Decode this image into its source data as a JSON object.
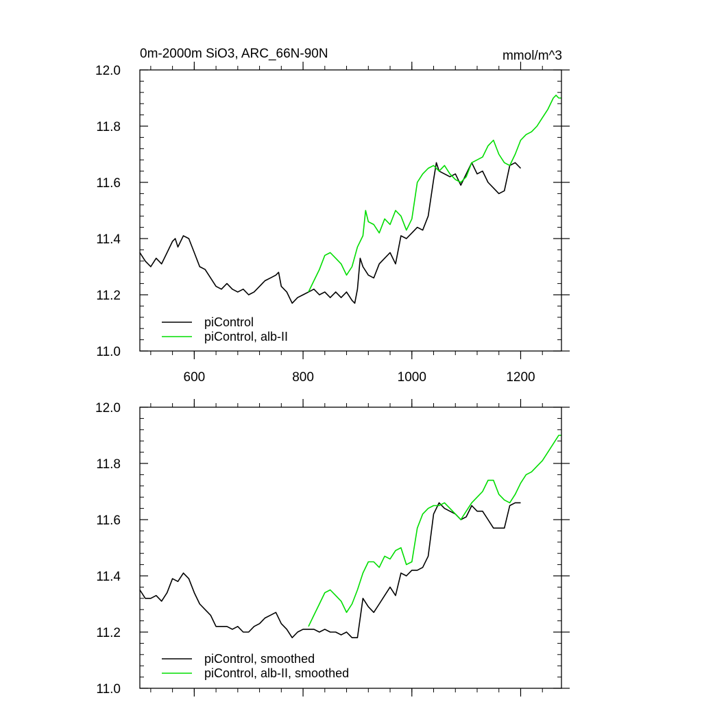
{
  "chart_data": [
    {
      "type": "line",
      "title": "0m-2000m SiO3, ARC_66N-90N",
      "units": "mmol/m^3",
      "xlim": [
        500,
        1275
      ],
      "ylim": [
        11.0,
        12.0
      ],
      "xticks": [
        600,
        800,
        1000,
        1200
      ],
      "yticks": [
        11.0,
        11.2,
        11.4,
        11.6,
        11.8,
        12.0
      ],
      "ytick_labels": [
        "11.0",
        "11.2",
        "11.4",
        "11.6",
        "11.8",
        "12.0"
      ],
      "legend_position": "bottom-left",
      "series": [
        {
          "name": "piControl",
          "color": "#000000",
          "x": [
            500,
            510,
            520,
            530,
            540,
            550,
            560,
            565,
            570,
            580,
            590,
            600,
            610,
            620,
            630,
            640,
            650,
            660,
            670,
            680,
            690,
            700,
            710,
            720,
            730,
            740,
            750,
            755,
            760,
            770,
            780,
            790,
            800,
            810,
            820,
            830,
            840,
            850,
            860,
            870,
            880,
            890,
            895,
            900,
            905,
            910,
            920,
            930,
            940,
            950,
            960,
            970,
            980,
            990,
            1000,
            1010,
            1020,
            1030,
            1040,
            1045,
            1050,
            1060,
            1070,
            1080,
            1090,
            1100,
            1110,
            1120,
            1130,
            1140,
            1150,
            1160,
            1170,
            1180,
            1190,
            1200
          ],
          "y": [
            11.35,
            11.32,
            11.3,
            11.33,
            11.31,
            11.35,
            11.39,
            11.4,
            11.37,
            11.41,
            11.4,
            11.35,
            11.3,
            11.29,
            11.26,
            11.23,
            11.22,
            11.24,
            11.22,
            11.21,
            11.22,
            11.2,
            11.21,
            11.23,
            11.25,
            11.26,
            11.27,
            11.28,
            11.23,
            11.21,
            11.17,
            11.19,
            11.2,
            11.21,
            11.22,
            11.2,
            11.21,
            11.19,
            11.21,
            11.19,
            11.21,
            11.18,
            11.17,
            11.22,
            11.33,
            11.3,
            11.27,
            11.26,
            11.31,
            11.33,
            11.35,
            11.31,
            11.41,
            11.4,
            11.42,
            11.44,
            11.43,
            11.48,
            11.61,
            11.67,
            11.64,
            11.63,
            11.62,
            11.63,
            11.59,
            11.63,
            11.67,
            11.63,
            11.64,
            11.6,
            11.58,
            11.56,
            11.57,
            11.66,
            11.67,
            11.65
          ]
        },
        {
          "name": "piControl, alb-II",
          "color": "#00dd00",
          "x": [
            810,
            820,
            830,
            840,
            850,
            860,
            870,
            880,
            890,
            900,
            910,
            915,
            920,
            930,
            940,
            950,
            960,
            970,
            980,
            990,
            1000,
            1010,
            1020,
            1030,
            1040,
            1050,
            1060,
            1070,
            1080,
            1090,
            1100,
            1110,
            1120,
            1130,
            1140,
            1150,
            1160,
            1170,
            1180,
            1190,
            1200,
            1210,
            1220,
            1230,
            1240,
            1250,
            1260,
            1265,
            1270,
            1275
          ],
          "y": [
            11.21,
            11.25,
            11.29,
            11.34,
            11.35,
            11.33,
            11.31,
            11.27,
            11.3,
            11.37,
            11.41,
            11.5,
            11.46,
            11.45,
            11.42,
            11.47,
            11.45,
            11.5,
            11.48,
            11.43,
            11.47,
            11.6,
            11.63,
            11.65,
            11.66,
            11.64,
            11.66,
            11.63,
            11.61,
            11.6,
            11.62,
            11.67,
            11.68,
            11.69,
            11.73,
            11.75,
            11.7,
            11.67,
            11.66,
            11.7,
            11.75,
            11.77,
            11.78,
            11.8,
            11.83,
            11.86,
            11.9,
            11.91,
            11.9,
            11.9
          ]
        }
      ]
    },
    {
      "type": "line",
      "xlim": [
        500,
        1275
      ],
      "ylim": [
        11.0,
        12.0
      ],
      "xticks": [
        600,
        800,
        1000,
        1200
      ],
      "yticks": [
        11.0,
        11.2,
        11.4,
        11.6,
        11.8,
        12.0
      ],
      "ytick_labels": [
        "11.0",
        "11.2",
        "11.4",
        "11.6",
        "11.8",
        "12.0"
      ],
      "legend_position": "bottom-left",
      "series": [
        {
          "name": "piControl, smoothed",
          "color": "#000000",
          "x": [
            500,
            510,
            520,
            530,
            540,
            550,
            560,
            570,
            580,
            590,
            600,
            610,
            620,
            630,
            640,
            650,
            660,
            670,
            680,
            690,
            700,
            710,
            720,
            730,
            740,
            750,
            760,
            770,
            780,
            790,
            800,
            810,
            820,
            830,
            840,
            850,
            860,
            870,
            880,
            890,
            900,
            910,
            920,
            930,
            940,
            950,
            960,
            970,
            980,
            990,
            1000,
            1010,
            1020,
            1030,
            1040,
            1050,
            1060,
            1070,
            1080,
            1090,
            1100,
            1110,
            1120,
            1130,
            1140,
            1150,
            1160,
            1170,
            1180,
            1190,
            1200
          ],
          "y": [
            11.35,
            11.32,
            11.32,
            11.33,
            11.31,
            11.34,
            11.39,
            11.38,
            11.41,
            11.39,
            11.34,
            11.3,
            11.28,
            11.26,
            11.22,
            11.22,
            11.22,
            11.21,
            11.22,
            11.2,
            11.2,
            11.22,
            11.23,
            11.25,
            11.26,
            11.27,
            11.23,
            11.21,
            11.18,
            11.2,
            11.21,
            11.21,
            11.21,
            11.2,
            11.21,
            11.2,
            11.2,
            11.19,
            11.2,
            11.18,
            11.18,
            11.32,
            11.29,
            11.27,
            11.3,
            11.33,
            11.36,
            11.33,
            11.41,
            11.4,
            11.42,
            11.42,
            11.43,
            11.47,
            11.62,
            11.66,
            11.64,
            11.63,
            11.62,
            11.6,
            11.61,
            11.65,
            11.63,
            11.63,
            11.6,
            11.57,
            11.57,
            11.57,
            11.65,
            11.66,
            11.66
          ]
        },
        {
          "name": "piControl, alb-II, smoothed",
          "color": "#00dd00",
          "x": [
            810,
            820,
            830,
            840,
            850,
            860,
            870,
            880,
            890,
            900,
            910,
            920,
            930,
            940,
            950,
            960,
            970,
            980,
            990,
            1000,
            1010,
            1020,
            1030,
            1040,
            1050,
            1060,
            1070,
            1080,
            1090,
            1100,
            1110,
            1120,
            1130,
            1140,
            1150,
            1160,
            1170,
            1180,
            1190,
            1200,
            1210,
            1220,
            1230,
            1240,
            1250,
            1260,
            1270,
            1275
          ],
          "y": [
            11.22,
            11.26,
            11.3,
            11.34,
            11.35,
            11.33,
            11.31,
            11.27,
            11.3,
            11.35,
            11.41,
            11.45,
            11.45,
            11.43,
            11.47,
            11.46,
            11.49,
            11.5,
            11.44,
            11.45,
            11.57,
            11.62,
            11.64,
            11.65,
            11.65,
            11.66,
            11.64,
            11.62,
            11.6,
            11.63,
            11.66,
            11.68,
            11.7,
            11.74,
            11.74,
            11.69,
            11.67,
            11.66,
            11.69,
            11.73,
            11.76,
            11.77,
            11.79,
            11.81,
            11.84,
            11.87,
            11.9,
            11.9
          ]
        }
      ]
    }
  ]
}
